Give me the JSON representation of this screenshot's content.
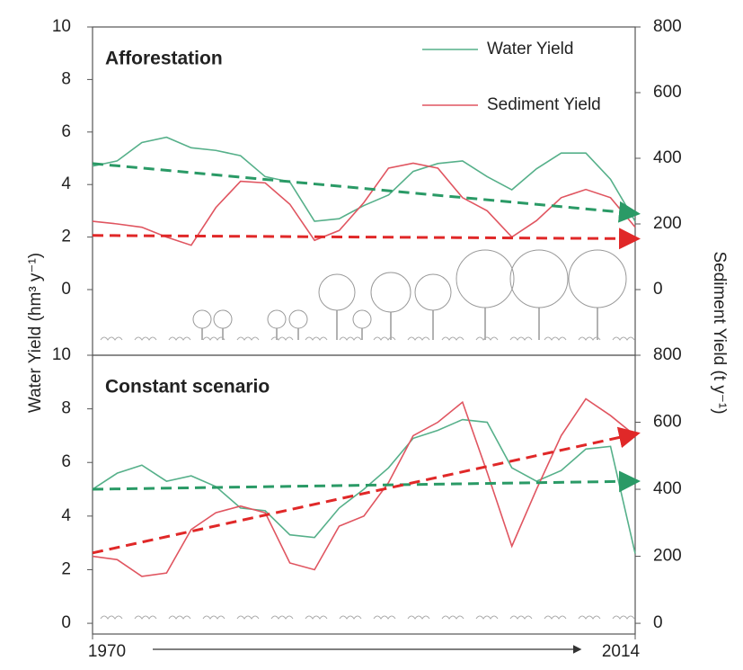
{
  "chart_data": [
    {
      "type": "line",
      "title": "Afforestation",
      "ylabel": "Water Yield (hm³ y⁻¹)",
      "y2label": "Sediment Yield (t y⁻¹)",
      "x": [
        1970,
        1972,
        1974,
        1976,
        1978,
        1980,
        1982,
        1984,
        1986,
        1988,
        1990,
        1992,
        1994,
        1996,
        1998,
        2000,
        2002,
        2004,
        2006,
        2008,
        2010,
        2012,
        2014
      ],
      "xlim": [
        1970,
        2014
      ],
      "ylim": [
        -2.5,
        10
      ],
      "yticks": [
        0,
        2,
        4,
        6,
        8,
        10
      ],
      "y2lim": [
        -200,
        800
      ],
      "y2ticks": [
        0,
        200,
        400,
        600,
        800
      ],
      "legend": "upper right",
      "series": [
        {
          "name": "Water Yield",
          "color": "#56b08a",
          "values": [
            4.7,
            4.9,
            5.6,
            5.8,
            5.4,
            5.3,
            5.1,
            4.3,
            4.1,
            2.6,
            2.7,
            3.2,
            3.6,
            4.5,
            4.8,
            4.9,
            4.3,
            3.8,
            4.6,
            5.2,
            5.2,
            4.2,
            2.6
          ]
        },
        {
          "name": "Sediment Yield",
          "color": "#e05560",
          "axis": "y2",
          "values": [
            208,
            200,
            190,
            160,
            135,
            250,
            330,
            325,
            260,
            150,
            180,
            265,
            370,
            385,
            370,
            280,
            240,
            160,
            210,
            280,
            305,
            280,
            190
          ]
        }
      ],
      "trends": [
        {
          "x": [
            1970,
            2014
          ],
          "values": [
            4.8,
            2.9
          ],
          "color": "#2a9a66"
        },
        {
          "x": [
            1970,
            2014
          ],
          "values": [
            165,
            155
          ],
          "axis": "y2",
          "color": "#e02828"
        }
      ]
    },
    {
      "type": "line",
      "title": "Constant scenario",
      "x": [
        1970,
        1972,
        1974,
        1976,
        1978,
        1980,
        1982,
        1984,
        1986,
        1988,
        1990,
        1992,
        1994,
        1996,
        1998,
        2000,
        2002,
        2004,
        2006,
        2008,
        2010,
        2012,
        2014
      ],
      "xlim": [
        1970,
        2014
      ],
      "xticks": [
        1970,
        2014
      ],
      "ylim": [
        -0.4,
        10
      ],
      "yticks": [
        0,
        2,
        4,
        6,
        8,
        10
      ],
      "y2lim": [
        -32,
        800
      ],
      "y2ticks": [
        0,
        200,
        400,
        600,
        800
      ],
      "series": [
        {
          "color": "#56b08a",
          "values": [
            5.0,
            5.6,
            5.9,
            5.3,
            5.5,
            5.1,
            4.3,
            4.2,
            3.3,
            3.2,
            4.3,
            5.0,
            5.8,
            6.9,
            7.2,
            7.6,
            7.5,
            5.8,
            5.3,
            5.7,
            6.5,
            6.6,
            2.6
          ]
        },
        {
          "color": "#e05560",
          "axis": "y2",
          "values": [
            200,
            190,
            140,
            150,
            280,
            330,
            350,
            330,
            180,
            160,
            290,
            320,
            420,
            560,
            600,
            660,
            450,
            230,
            400,
            560,
            670,
            620,
            560
          ]
        }
      ],
      "trends": [
        {
          "x": [
            1970,
            2014
          ],
          "values": [
            5.0,
            5.3
          ],
          "color": "#2a9a66"
        },
        {
          "x": [
            1970,
            2014
          ],
          "values": [
            210,
            565
          ],
          "axis": "y2",
          "color": "#e02828"
        }
      ]
    }
  ]
}
